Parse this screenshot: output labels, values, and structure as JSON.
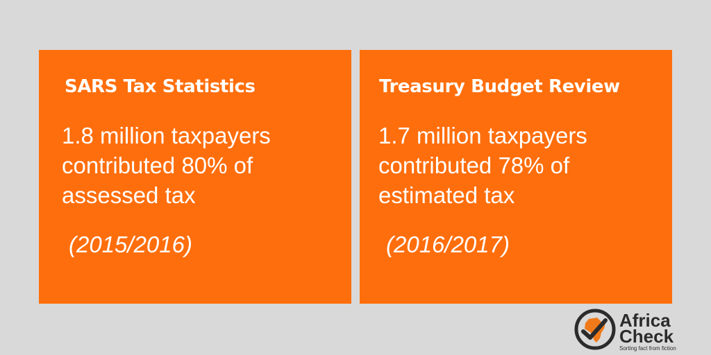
{
  "colors": {
    "background": "#d9d9d9",
    "card": "#ff6e0c",
    "text": "#ffffff",
    "logo_text": "#2b2b2b",
    "logo_accent": "#f07a1a"
  },
  "cards": [
    {
      "title": "SARS Tax Statistics",
      "lines": [
        "1.8 million taxpayers",
        "contributed 80% of",
        "assessed tax"
      ],
      "period": "(2015/2016)"
    },
    {
      "title": "Treasury Budget Review",
      "lines": [
        "1.7 million taxpayers",
        "contributed 78% of",
        "estimated tax"
      ],
      "period": "(2016/2017)"
    }
  ],
  "logo": {
    "name_line1": "Africa",
    "name_line2": "Check",
    "tagline": "Sorting fact from fiction",
    "icon": "africa-check-icon"
  }
}
